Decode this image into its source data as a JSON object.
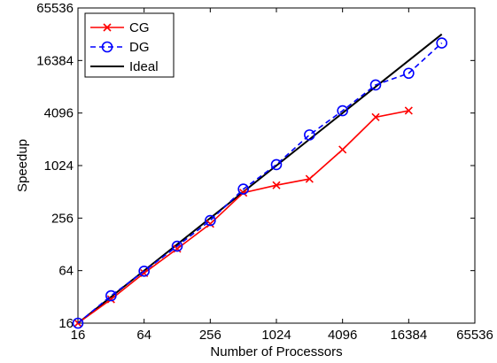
{
  "chart_data": {
    "type": "line",
    "title": "",
    "xlabel": "Number of Processors",
    "ylabel": "Speedup",
    "xscale": "log2",
    "yscale": "log2",
    "xlim": [
      16,
      65536
    ],
    "ylim": [
      16,
      65536
    ],
    "xticks": [
      16,
      64,
      256,
      1024,
      4096,
      16384,
      65536
    ],
    "yticks": [
      16,
      64,
      256,
      1024,
      4096,
      16384,
      65536
    ],
    "xtick_labels": [
      "16",
      "64",
      "256",
      "1024",
      "4096",
      "16384",
      "65536"
    ],
    "ytick_labels": [
      "16",
      "64",
      "256",
      "1024",
      "4096",
      "16384",
      "65536"
    ],
    "grid": false,
    "legend_position": "top-left",
    "legend": [
      "CG",
      "DG",
      "Ideal"
    ],
    "series": [
      {
        "name": "CG",
        "color": "#ff0000",
        "line_style": "solid",
        "marker": "x",
        "x": [
          16,
          32,
          64,
          128,
          256,
          512,
          1024,
          2048,
          4096,
          8192,
          16384
        ],
        "y": [
          16,
          30,
          60,
          114,
          220,
          500,
          610,
          720,
          1560,
          3670,
          4360
        ]
      },
      {
        "name": "DG",
        "color": "#0000ff",
        "line_style": "dashed",
        "marker": "circle",
        "x": [
          16,
          32,
          64,
          128,
          256,
          512,
          1024,
          2048,
          4096,
          8192,
          16384,
          32768
        ],
        "y": [
          16,
          33,
          63,
          122,
          240,
          550,
          1050,
          2300,
          4350,
          8600,
          11700,
          26000
        ]
      },
      {
        "name": "Ideal",
        "color": "#000000",
        "line_style": "solid",
        "marker": "none",
        "x": [
          16,
          32768
        ],
        "y": [
          16,
          32768
        ]
      }
    ]
  }
}
